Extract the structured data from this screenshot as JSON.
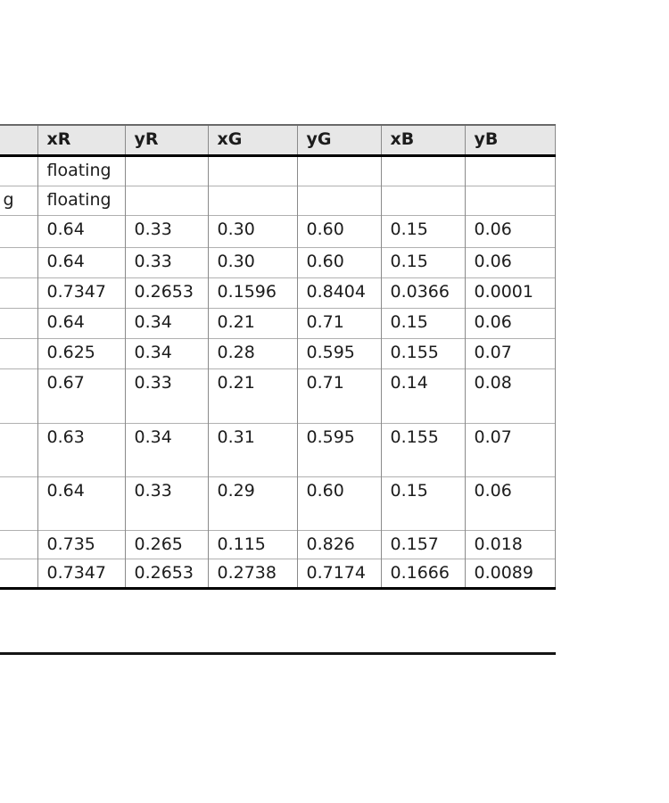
{
  "table": {
    "headers": [
      "",
      "xR",
      "yR",
      "xG",
      "yG",
      "xB",
      "yB"
    ],
    "rows": [
      {
        "left_fragment": "",
        "values": [
          "floating",
          "",
          "",
          "",
          "",
          ""
        ]
      },
      {
        "left_fragment": "g",
        "values": [
          "floating",
          "",
          "",
          "",
          "",
          ""
        ]
      },
      {
        "left_fragment": "",
        "values": [
          "0.64",
          "0.33",
          "0.30",
          "0.60",
          "0.15",
          "0.06"
        ]
      },
      {
        "left_fragment": "",
        "values": [
          "0.64",
          "0.33",
          "0.30",
          "0.60",
          "0.15",
          "0.06"
        ]
      },
      {
        "left_fragment": "",
        "values": [
          "0.7347",
          "0.2653",
          "0.1596",
          "0.8404",
          "0.0366",
          "0.0001"
        ]
      },
      {
        "left_fragment": "",
        "values": [
          "0.64",
          "0.34",
          "0.21",
          "0.71",
          "0.15",
          "0.06"
        ]
      },
      {
        "left_fragment": "",
        "values": [
          "0.625",
          "0.34",
          "0.28",
          "0.595",
          "0.155",
          "0.07"
        ]
      },
      {
        "left_fragment": "",
        "values": [
          "0.67",
          "0.33",
          "0.21",
          "0.71",
          "0.14",
          "0.08"
        ]
      },
      {
        "left_fragment": "",
        "values": [
          "0.63",
          "0.34",
          "0.31",
          "0.595",
          "0.155",
          "0.07"
        ]
      },
      {
        "left_fragment": "",
        "values": [
          "0.64",
          "0.33",
          "0.29",
          "0.60",
          "0.15",
          "0.06"
        ]
      },
      {
        "left_fragment": "",
        "values": [
          "0.735",
          "0.265",
          "0.115",
          "0.826",
          "0.157",
          "0.018"
        ]
      },
      {
        "left_fragment": "",
        "values": [
          "0.7347",
          "0.2653",
          "0.2738",
          "0.7174",
          "0.1666",
          "0.0089"
        ]
      }
    ]
  },
  "colors": {
    "header_bg": "#e7e7e7",
    "grid_vertical": "#8a8a8a",
    "grid_horizontal": "#b0b0b0",
    "strong_rule": "#000000",
    "divider": "#151515"
  }
}
